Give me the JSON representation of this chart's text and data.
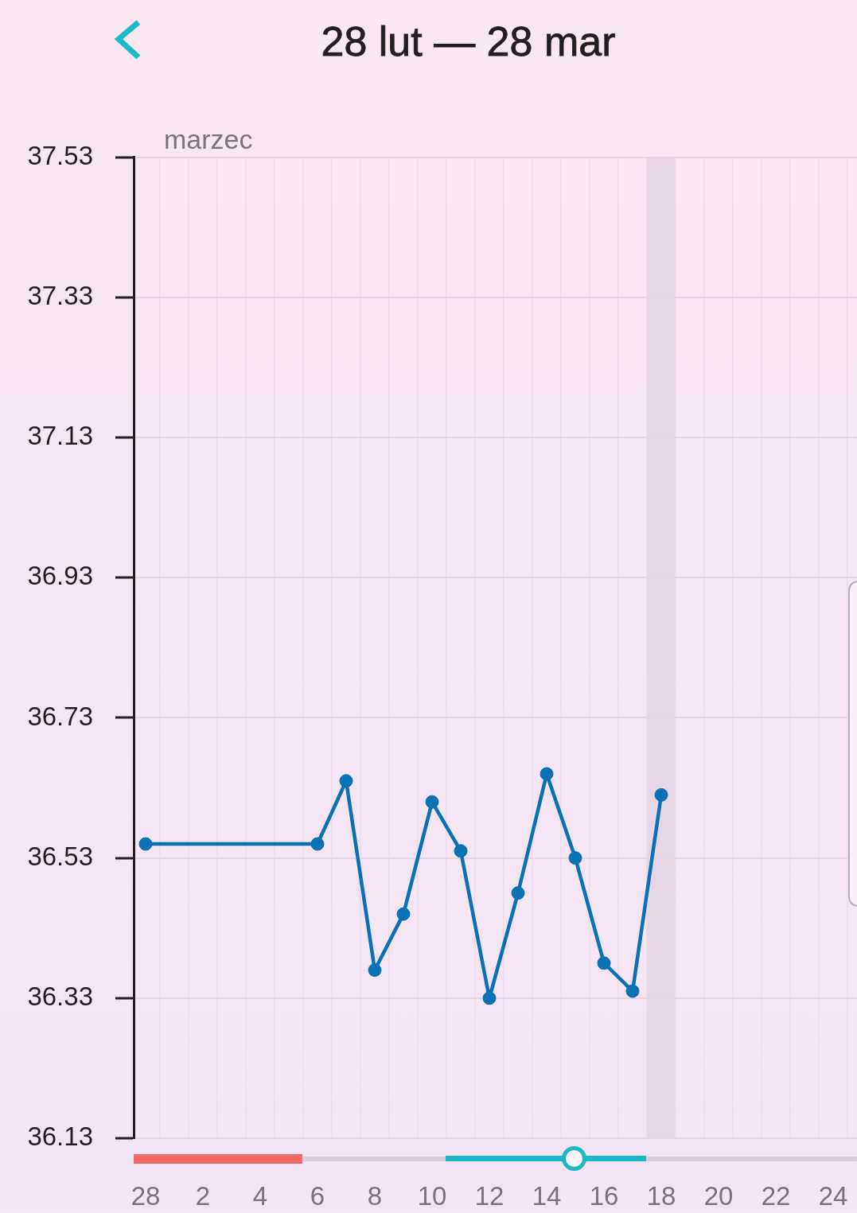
{
  "chart_data": {
    "type": "line",
    "title": "28 lut — 28 mar",
    "annotations": [
      "marzec"
    ],
    "x": [
      "--02-28",
      "--03-06",
      "--03-07",
      "--03-08",
      "--03-09",
      "--03-10",
      "--03-11",
      "--03-12",
      "--03-13",
      "--03-14",
      "--03-15",
      "--03-16",
      "--03-17",
      "--03-18"
    ],
    "series": [
      {
        "color": "#0a71b4",
        "values": [
          36.55,
          36.55,
          36.64,
          36.37,
          36.45,
          36.61,
          36.54,
          36.33,
          36.48,
          36.65,
          36.53,
          36.38,
          36.34,
          36.62
        ]
      }
    ],
    "xlim": [
      "--02-27T14:00",
      "--03-24T20:00"
    ],
    "xticks": [
      {
        "value": "--02-28",
        "label": "28"
      },
      {
        "value": "--02-28T12:00",
        "label": null
      },
      {
        "value": "--03-01T12:00",
        "label": null
      },
      {
        "value": "--03-02",
        "label": "2"
      },
      {
        "value": "--03-02T12:00",
        "label": null
      },
      {
        "value": "--03-03T12:00",
        "label": null
      },
      {
        "value": "--03-04",
        "label": "4"
      },
      {
        "value": "--03-04T12:00",
        "label": null
      },
      {
        "value": "--03-05T12:00",
        "label": null
      },
      {
        "value": "--03-06",
        "label": "6"
      },
      {
        "value": "--03-06T12:00",
        "label": null
      },
      {
        "value": "--03-07T12:00",
        "label": null
      },
      {
        "value": "--03-08",
        "label": "8"
      },
      {
        "value": "--03-08T12:00",
        "label": null
      },
      {
        "value": "--03-09T12:00",
        "label": null
      },
      {
        "value": "--03-10",
        "label": "10"
      },
      {
        "value": "--03-10T12:00",
        "label": null
      },
      {
        "value": "--03-11T12:00",
        "label": null
      },
      {
        "value": "--03-12",
        "label": "12"
      },
      {
        "value": "--03-12T12:00",
        "label": null
      },
      {
        "value": "--03-13T12:00",
        "label": null
      },
      {
        "value": "--03-14",
        "label": "14"
      },
      {
        "value": "--03-14T12:00",
        "label": null
      },
      {
        "value": "--03-15T12:00",
        "label": null
      },
      {
        "value": "--03-16",
        "label": "16"
      },
      {
        "value": "--03-16T12:00",
        "label": null
      },
      {
        "value": "--03-17T12:00",
        "label": null
      },
      {
        "value": "--03-18",
        "label": "18"
      },
      {
        "value": "--03-18T12:00",
        "label": null
      },
      {
        "value": "--03-19T12:00",
        "label": null
      },
      {
        "value": "--03-20",
        "label": "20"
      },
      {
        "value": "--03-20T12:00",
        "label": null
      },
      {
        "value": "--03-21T12:00",
        "label": null
      },
      {
        "value": "--03-22",
        "label": "22"
      },
      {
        "value": "--03-22T12:00",
        "label": null
      },
      {
        "value": "--03-23T12:00",
        "label": null
      },
      {
        "value": "--03-24",
        "label": "24"
      },
      {
        "value": "--03-24T12:00",
        "label": null
      }
    ],
    "ylim": [
      36.13,
      37.53
    ],
    "yticks": [
      36.13,
      36.33,
      36.53,
      36.73,
      36.93,
      37.13,
      37.33,
      37.53
    ],
    "bands": [
      {
        "axis": "x",
        "from": "--03-17T12:00",
        "to": "--03-18T12:00",
        "color": "#e7d6e6"
      }
    ],
    "grid": true,
    "marker": "circle",
    "line_style": "solid"
  }
}
